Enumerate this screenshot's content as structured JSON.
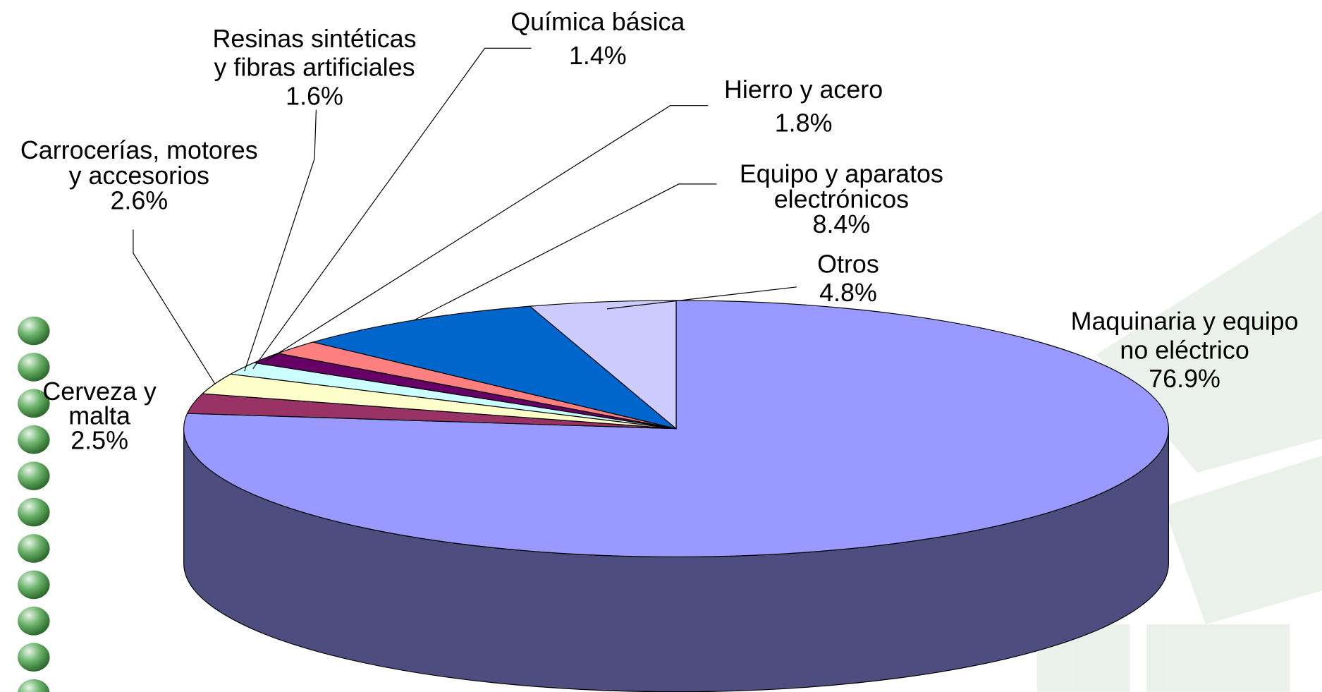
{
  "chart_data": {
    "type": "pie3d",
    "categories": [
      [
        "Maquinaria y equipo",
        "no eléctrico"
      ],
      [
        "Cerveza y",
        "malta"
      ],
      [
        "Carrocerías, motores",
        "y accesorios"
      ],
      [
        "Resinas sintéticas",
        "y fibras artificiales"
      ],
      [
        "Química básica"
      ],
      [
        "Hierro y acero"
      ],
      [
        "Equipo y aparatos",
        "electrónicos"
      ],
      [
        "Otros"
      ]
    ],
    "values": [
      76.9,
      2.5,
      2.6,
      1.6,
      1.4,
      1.8,
      8.4,
      4.8
    ],
    "value_labels": [
      "76.9%",
      "2.5%",
      "2.6%",
      "1.6%",
      "1.4%",
      "1.8%",
      "8.4%",
      "4.8%"
    ],
    "colors": [
      "#9999ff",
      "#993366",
      "#ffffcc",
      "#ccffff",
      "#660066",
      "#ff8080",
      "#0066cc",
      "#ccccff"
    ]
  }
}
